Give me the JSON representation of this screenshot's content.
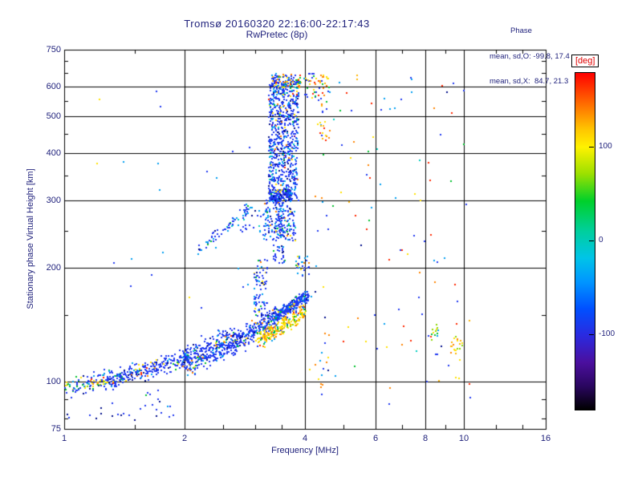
{
  "header": {
    "title": "Tromsø 20160320 22:16:00-22:17:43",
    "subtitle": "RwPretec (8p)",
    "stats_title": "Phase",
    "stats_line1": "mean, sd,O: -99.8, 17.4",
    "stats_line2": "mean, sd,X:  84.7, 21.3"
  },
  "chart_data": {
    "type": "scatter",
    "title": "Tromsø 20160320 22:16:00-22:17:43",
    "subtitle": "RwPretec (8p)",
    "xlabel": "Frequency [MHz]",
    "ylabel": "Stationary phase Virtual Height [km]",
    "x_axis": {
      "scale": "log",
      "min": 1,
      "max": 16,
      "ticks": [
        1,
        2,
        4,
        6,
        8,
        10,
        16
      ],
      "gridlines": [
        2,
        4,
        6,
        8,
        10
      ],
      "minor_ticks": [
        1.5,
        2.5,
        3,
        3.5,
        5,
        7,
        9,
        12,
        14
      ]
    },
    "y_axis": {
      "scale": "log",
      "min": 75,
      "max": 750,
      "ticks": [
        75,
        100,
        200,
        300,
        400,
        500,
        600,
        750
      ],
      "gridlines": [
        100,
        200,
        300,
        400,
        500,
        600
      ],
      "minor_ticks": [
        80,
        90,
        150,
        250,
        350,
        450,
        550,
        650,
        700
      ]
    },
    "grid": true,
    "colorbar": {
      "label": "[deg]",
      "range": [
        -180,
        180
      ],
      "ticks": [
        100,
        0,
        -100
      ],
      "gradient": [
        [
          "#ff0000",
          0
        ],
        [
          "#ff6a00",
          9
        ],
        [
          "#ffc800",
          17
        ],
        [
          "#fff200",
          22
        ],
        [
          "#9be000",
          30
        ],
        [
          "#00d02a",
          38
        ],
        [
          "#00cf9d",
          47
        ],
        [
          "#00c4e8",
          55
        ],
        [
          "#0096ff",
          62
        ],
        [
          "#0050ff",
          70
        ],
        [
          "#2a2ae0",
          78
        ],
        [
          "#4b0f9e",
          86
        ],
        [
          "#2a0660",
          93
        ],
        [
          "#000000",
          100
        ]
      ]
    },
    "clusters": [
      {
        "name": "e-region-blob-left",
        "kind": "band",
        "f0": 1.0,
        "f1": 1.35,
        "h0": 96,
        "h1": 103,
        "jh": 0.02,
        "jf": 0.05,
        "count": 130,
        "colors": [
          [
            "#2038f0",
            40
          ],
          [
            "#00c22e",
            16
          ],
          [
            "#ffe000",
            13
          ],
          [
            "#009ff0",
            10
          ],
          [
            "#8cd800",
            8
          ],
          [
            "#00cfc0",
            5
          ],
          [
            "#ff8400",
            4
          ],
          [
            "#ff2800",
            2
          ],
          [
            "#000d8a",
            2
          ]
        ]
      },
      {
        "name": "e-band-1",
        "kind": "band",
        "f0": 1.28,
        "f1": 2.05,
        "h0": 100,
        "h1": 116,
        "jh": 0.02,
        "count": 260,
        "colors": [
          [
            "#2038f0",
            70
          ],
          [
            "#000d8a",
            8
          ],
          [
            "#009ff0",
            10
          ],
          [
            "#00c22e",
            4
          ],
          [
            "#ffe000",
            4
          ],
          [
            "#ff2800",
            2
          ],
          [
            "#ff8400",
            2
          ]
        ]
      },
      {
        "name": "e-band-2",
        "kind": "band",
        "f0": 2.0,
        "f1": 2.7,
        "h0": 112,
        "h1": 130,
        "jh": 0.034,
        "count": 330,
        "colors": [
          [
            "#2038f0",
            72
          ],
          [
            "#000d8a",
            6
          ],
          [
            "#009ff0",
            12
          ],
          [
            "#00c22e",
            3
          ],
          [
            "#ffe000",
            3
          ],
          [
            "#ff8400",
            2
          ],
          [
            "#ff2800",
            2
          ]
        ]
      },
      {
        "name": "e-band-3",
        "kind": "band",
        "f0": 2.65,
        "f1": 3.3,
        "h0": 126,
        "h1": 146,
        "jh": 0.022,
        "count": 210,
        "colors": [
          [
            "#2038f0",
            75
          ],
          [
            "#009ff0",
            12
          ],
          [
            "#000d8a",
            5
          ],
          [
            "#00c22e",
            3
          ],
          [
            "#ffe000",
            3
          ],
          [
            "#ff8400",
            2
          ]
        ]
      },
      {
        "name": "e-band-4",
        "kind": "band",
        "f0": 3.3,
        "f1": 4.05,
        "h0": 146,
        "h1": 168,
        "jh": 0.014,
        "count": 330,
        "colors": [
          [
            "#2038f0",
            78
          ],
          [
            "#009ff0",
            12
          ],
          [
            "#000d8a",
            4
          ],
          [
            "#00c22e",
            2
          ],
          [
            "#ffe000",
            3
          ],
          [
            "#ff8400",
            1
          ]
        ]
      },
      {
        "name": "es-yellow-streak",
        "kind": "band",
        "f0": 3.05,
        "f1": 4.0,
        "h0": 128,
        "h1": 152,
        "jh": 0.018,
        "count": 240,
        "colors": [
          [
            "#ffe000",
            38
          ],
          [
            "#ffb400",
            18
          ],
          [
            "#ff8400",
            12
          ],
          [
            "#8cd800",
            10
          ],
          [
            "#00c22e",
            9
          ],
          [
            "#009ff0",
            5
          ],
          [
            "#2038f0",
            5
          ],
          [
            "#ff2800",
            3
          ]
        ]
      },
      {
        "name": "below-band-sparse",
        "kind": "box",
        "fmin": 1.0,
        "fmax": 1.9,
        "hmin": 78,
        "hmax": 95,
        "count": 34,
        "colors": [
          [
            "#2038f0",
            60
          ],
          [
            "#000d8a",
            25
          ],
          [
            "#009ff0",
            10
          ],
          [
            "#00c22e",
            5
          ]
        ]
      },
      {
        "name": "f-spread-column",
        "kind": "box",
        "fmin": 3.25,
        "fmax": 3.85,
        "hmin": 300,
        "hmax": 620,
        "count": 760,
        "colors": [
          [
            "#2038f0",
            64
          ],
          [
            "#009ff0",
            14
          ],
          [
            "#000d8a",
            9
          ],
          [
            "#00cfc0",
            4
          ],
          [
            "#00c22e",
            2
          ],
          [
            "#ffe000",
            3
          ],
          [
            "#ff8400",
            2
          ],
          [
            "#ff2800",
            1
          ],
          [
            "#5b0f9c",
            1
          ]
        ]
      },
      {
        "name": "f-column-top",
        "kind": "box",
        "fmin": 3.3,
        "fmax": 3.95,
        "hmin": 595,
        "hmax": 648,
        "count": 95,
        "colors": [
          [
            "#2038f0",
            42
          ],
          [
            "#009ff0",
            10
          ],
          [
            "#ffe000",
            16
          ],
          [
            "#ff8400",
            12
          ],
          [
            "#ff2800",
            6
          ],
          [
            "#00c22e",
            6
          ],
          [
            "#ffb400",
            8
          ]
        ]
      },
      {
        "name": "f-column-base",
        "kind": "box",
        "fmin": 3.25,
        "fmax": 3.72,
        "hmin": 298,
        "hmax": 320,
        "count": 130,
        "colors": [
          [
            "#2038f0",
            68
          ],
          [
            "#000d8a",
            16
          ],
          [
            "#009ff0",
            10
          ],
          [
            "#00c22e",
            3
          ],
          [
            "#ffe000",
            3
          ]
        ]
      },
      {
        "name": "f-mid-cluster",
        "kind": "box",
        "fmin": 3.15,
        "fmax": 3.8,
        "hmin": 235,
        "hmax": 300,
        "count": 170,
        "colors": [
          [
            "#2038f0",
            60
          ],
          [
            "#009ff0",
            16
          ],
          [
            "#000d8a",
            6
          ],
          [
            "#00cfc0",
            6
          ],
          [
            "#00c22e",
            4
          ],
          [
            "#ffe000",
            5
          ],
          [
            "#ff8400",
            3
          ]
        ]
      },
      {
        "name": "stem-lower",
        "kind": "box",
        "fmin": 2.98,
        "fmax": 3.22,
        "hmin": 148,
        "hmax": 210,
        "count": 85,
        "colors": [
          [
            "#2038f0",
            66
          ],
          [
            "#009ff0",
            14
          ],
          [
            "#000d8a",
            6
          ],
          [
            "#00c22e",
            4
          ],
          [
            "#ffe000",
            7
          ],
          [
            "#ff8400",
            3
          ]
        ]
      },
      {
        "name": "stem-upper",
        "kind": "box",
        "fmin": 3.34,
        "fmax": 3.56,
        "hmin": 205,
        "hmax": 300,
        "count": 75,
        "colors": [
          [
            "#2038f0",
            70
          ],
          [
            "#009ff0",
            14
          ],
          [
            "#000d8a",
            8
          ],
          [
            "#00c22e",
            4
          ],
          [
            "#ffe000",
            4
          ]
        ]
      },
      {
        "name": "clump-4mhz-200km",
        "kind": "box",
        "fmin": 3.8,
        "fmax": 4.1,
        "hmin": 190,
        "hmax": 215,
        "count": 30,
        "colors": [
          [
            "#2038f0",
            55
          ],
          [
            "#009ff0",
            20
          ],
          [
            "#ffe000",
            15
          ],
          [
            "#00c22e",
            5
          ],
          [
            "#ff8400",
            5
          ]
        ]
      },
      {
        "name": "f-trace-diagonal",
        "kind": "band",
        "f0": 2.15,
        "f1": 3.0,
        "h0": 222,
        "h1": 292,
        "jh": 0.012,
        "count": 70,
        "colors": [
          [
            "#2038f0",
            52
          ],
          [
            "#009ff0",
            26
          ],
          [
            "#00cfc0",
            10
          ],
          [
            "#00c22e",
            6
          ],
          [
            "#000d8a",
            6
          ]
        ]
      },
      {
        "name": "column-4p4-high",
        "kind": "box",
        "fmin": 4.3,
        "fmax": 4.62,
        "hmin": 430,
        "hmax": 645,
        "count": 46,
        "colors": [
          [
            "#ffe000",
            22
          ],
          [
            "#ff8400",
            18
          ],
          [
            "#2038f0",
            20
          ],
          [
            "#009ff0",
            10
          ],
          [
            "#ff2800",
            9
          ],
          [
            "#ffb400",
            12
          ],
          [
            "#00c22e",
            9
          ]
        ]
      },
      {
        "name": "column-4p4-low",
        "kind": "box",
        "fmin": 4.25,
        "fmax": 4.6,
        "hmin": 95,
        "hmax": 135,
        "count": 14,
        "colors": [
          [
            "#ff8400",
            30
          ],
          [
            "#ffe000",
            25
          ],
          [
            "#2038f0",
            20
          ],
          [
            "#009ff0",
            15
          ],
          [
            "#ff2800",
            10
          ]
        ]
      },
      {
        "name": "right-sparse",
        "kind": "box",
        "fmin": 4.1,
        "fmax": 10.8,
        "hmin": 85,
        "hmax": 650,
        "count": 115,
        "colors": [
          [
            "#2038f0",
            27
          ],
          [
            "#009ff0",
            14
          ],
          [
            "#ffe000",
            16
          ],
          [
            "#ff8400",
            12
          ],
          [
            "#ff2800",
            9
          ],
          [
            "#00c22e",
            9
          ],
          [
            "#00cfc0",
            5
          ],
          [
            "#000d8a",
            4
          ],
          [
            "#ffb400",
            4
          ]
        ]
      },
      {
        "name": "green-cluster-8p5",
        "kind": "box",
        "fmin": 8.25,
        "fmax": 8.65,
        "hmin": 128,
        "hmax": 142,
        "count": 13,
        "colors": [
          [
            "#00c22e",
            40
          ],
          [
            "#8cd800",
            25
          ],
          [
            "#ffe000",
            20
          ],
          [
            "#009ff0",
            10
          ],
          [
            "#ffb400",
            5
          ]
        ]
      },
      {
        "name": "yellow-cluster-9p5",
        "kind": "box",
        "fmin": 9.2,
        "fmax": 9.9,
        "hmin": 118,
        "hmax": 133,
        "count": 20,
        "colors": [
          [
            "#ffe000",
            40
          ],
          [
            "#ffb400",
            20
          ],
          [
            "#8cd800",
            15
          ],
          [
            "#00c22e",
            10
          ],
          [
            "#ff8400",
            10
          ],
          [
            "#009ff0",
            5
          ]
        ]
      },
      {
        "name": "top-right-of-column",
        "kind": "box",
        "fmin": 3.95,
        "fmax": 4.3,
        "hmin": 555,
        "hmax": 650,
        "count": 26,
        "colors": [
          [
            "#2038f0",
            40
          ],
          [
            "#009ff0",
            10
          ],
          [
            "#ffe000",
            20
          ],
          [
            "#ffb400",
            10
          ],
          [
            "#ff8400",
            10
          ],
          [
            "#ff2800",
            5
          ],
          [
            "#00c22e",
            5
          ]
        ]
      },
      {
        "name": "left-sparse",
        "kind": "box",
        "fmin": 1.15,
        "fmax": 2.95,
        "hmin": 150,
        "hmax": 640,
        "count": 22,
        "colors": [
          [
            "#2038f0",
            55
          ],
          [
            "#009ff0",
            20
          ],
          [
            "#ffe000",
            10
          ],
          [
            "#00c22e",
            5
          ],
          [
            "#ff8400",
            5
          ],
          [
            "#ff2800",
            5
          ]
        ]
      },
      {
        "name": "pre-column-sparse",
        "kind": "box",
        "fmin": 2.75,
        "fmax": 3.25,
        "hmin": 248,
        "hmax": 300,
        "count": 25,
        "colors": [
          [
            "#2038f0",
            60
          ],
          [
            "#009ff0",
            25
          ],
          [
            "#00cfc0",
            10
          ],
          [
            "#000d8a",
            5
          ]
        ]
      }
    ]
  },
  "colors": {
    "text": "#20227c",
    "frame": "#000000",
    "deg_label": "#e00000"
  }
}
